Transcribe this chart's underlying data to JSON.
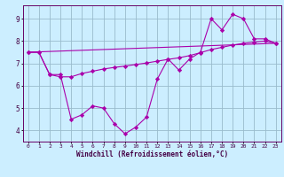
{
  "xlabel": "Windchill (Refroidissement éolien,°C)",
  "background_color": "#cceeff",
  "line_color": "#aa00aa",
  "grid_color": "#99bbcc",
  "xlim": [
    -0.5,
    23.5
  ],
  "ylim": [
    3.5,
    9.6
  ],
  "yticks": [
    4,
    5,
    6,
    7,
    8,
    9
  ],
  "xticks": [
    0,
    1,
    2,
    3,
    4,
    5,
    6,
    7,
    8,
    9,
    10,
    11,
    12,
    13,
    14,
    15,
    16,
    17,
    18,
    19,
    20,
    21,
    22,
    23
  ],
  "series1_x": [
    0,
    1,
    2,
    3,
    4,
    5,
    6,
    7,
    8,
    9,
    10,
    11,
    12,
    13,
    14,
    15,
    16,
    17,
    18,
    19,
    20,
    21,
    22,
    23
  ],
  "series1_y": [
    7.5,
    7.5,
    6.5,
    6.5,
    4.5,
    4.7,
    5.1,
    5.0,
    4.3,
    3.85,
    4.15,
    4.6,
    6.3,
    7.2,
    6.7,
    7.2,
    7.5,
    9.0,
    8.5,
    9.2,
    9.0,
    8.1,
    8.1,
    7.9
  ],
  "series2_x": [
    0,
    1,
    2,
    3,
    4,
    5,
    6,
    7,
    8,
    9,
    10,
    11,
    12,
    13,
    14,
    15,
    16,
    17,
    18,
    19,
    20,
    21,
    22,
    23
  ],
  "series2_y": [
    7.5,
    7.5,
    6.5,
    6.4,
    6.4,
    6.55,
    6.65,
    6.75,
    6.82,
    6.88,
    6.95,
    7.02,
    7.1,
    7.18,
    7.25,
    7.35,
    7.48,
    7.62,
    7.72,
    7.82,
    7.9,
    7.95,
    8.0,
    7.9
  ],
  "series3_x": [
    0,
    23
  ],
  "series3_y": [
    7.5,
    7.9
  ]
}
